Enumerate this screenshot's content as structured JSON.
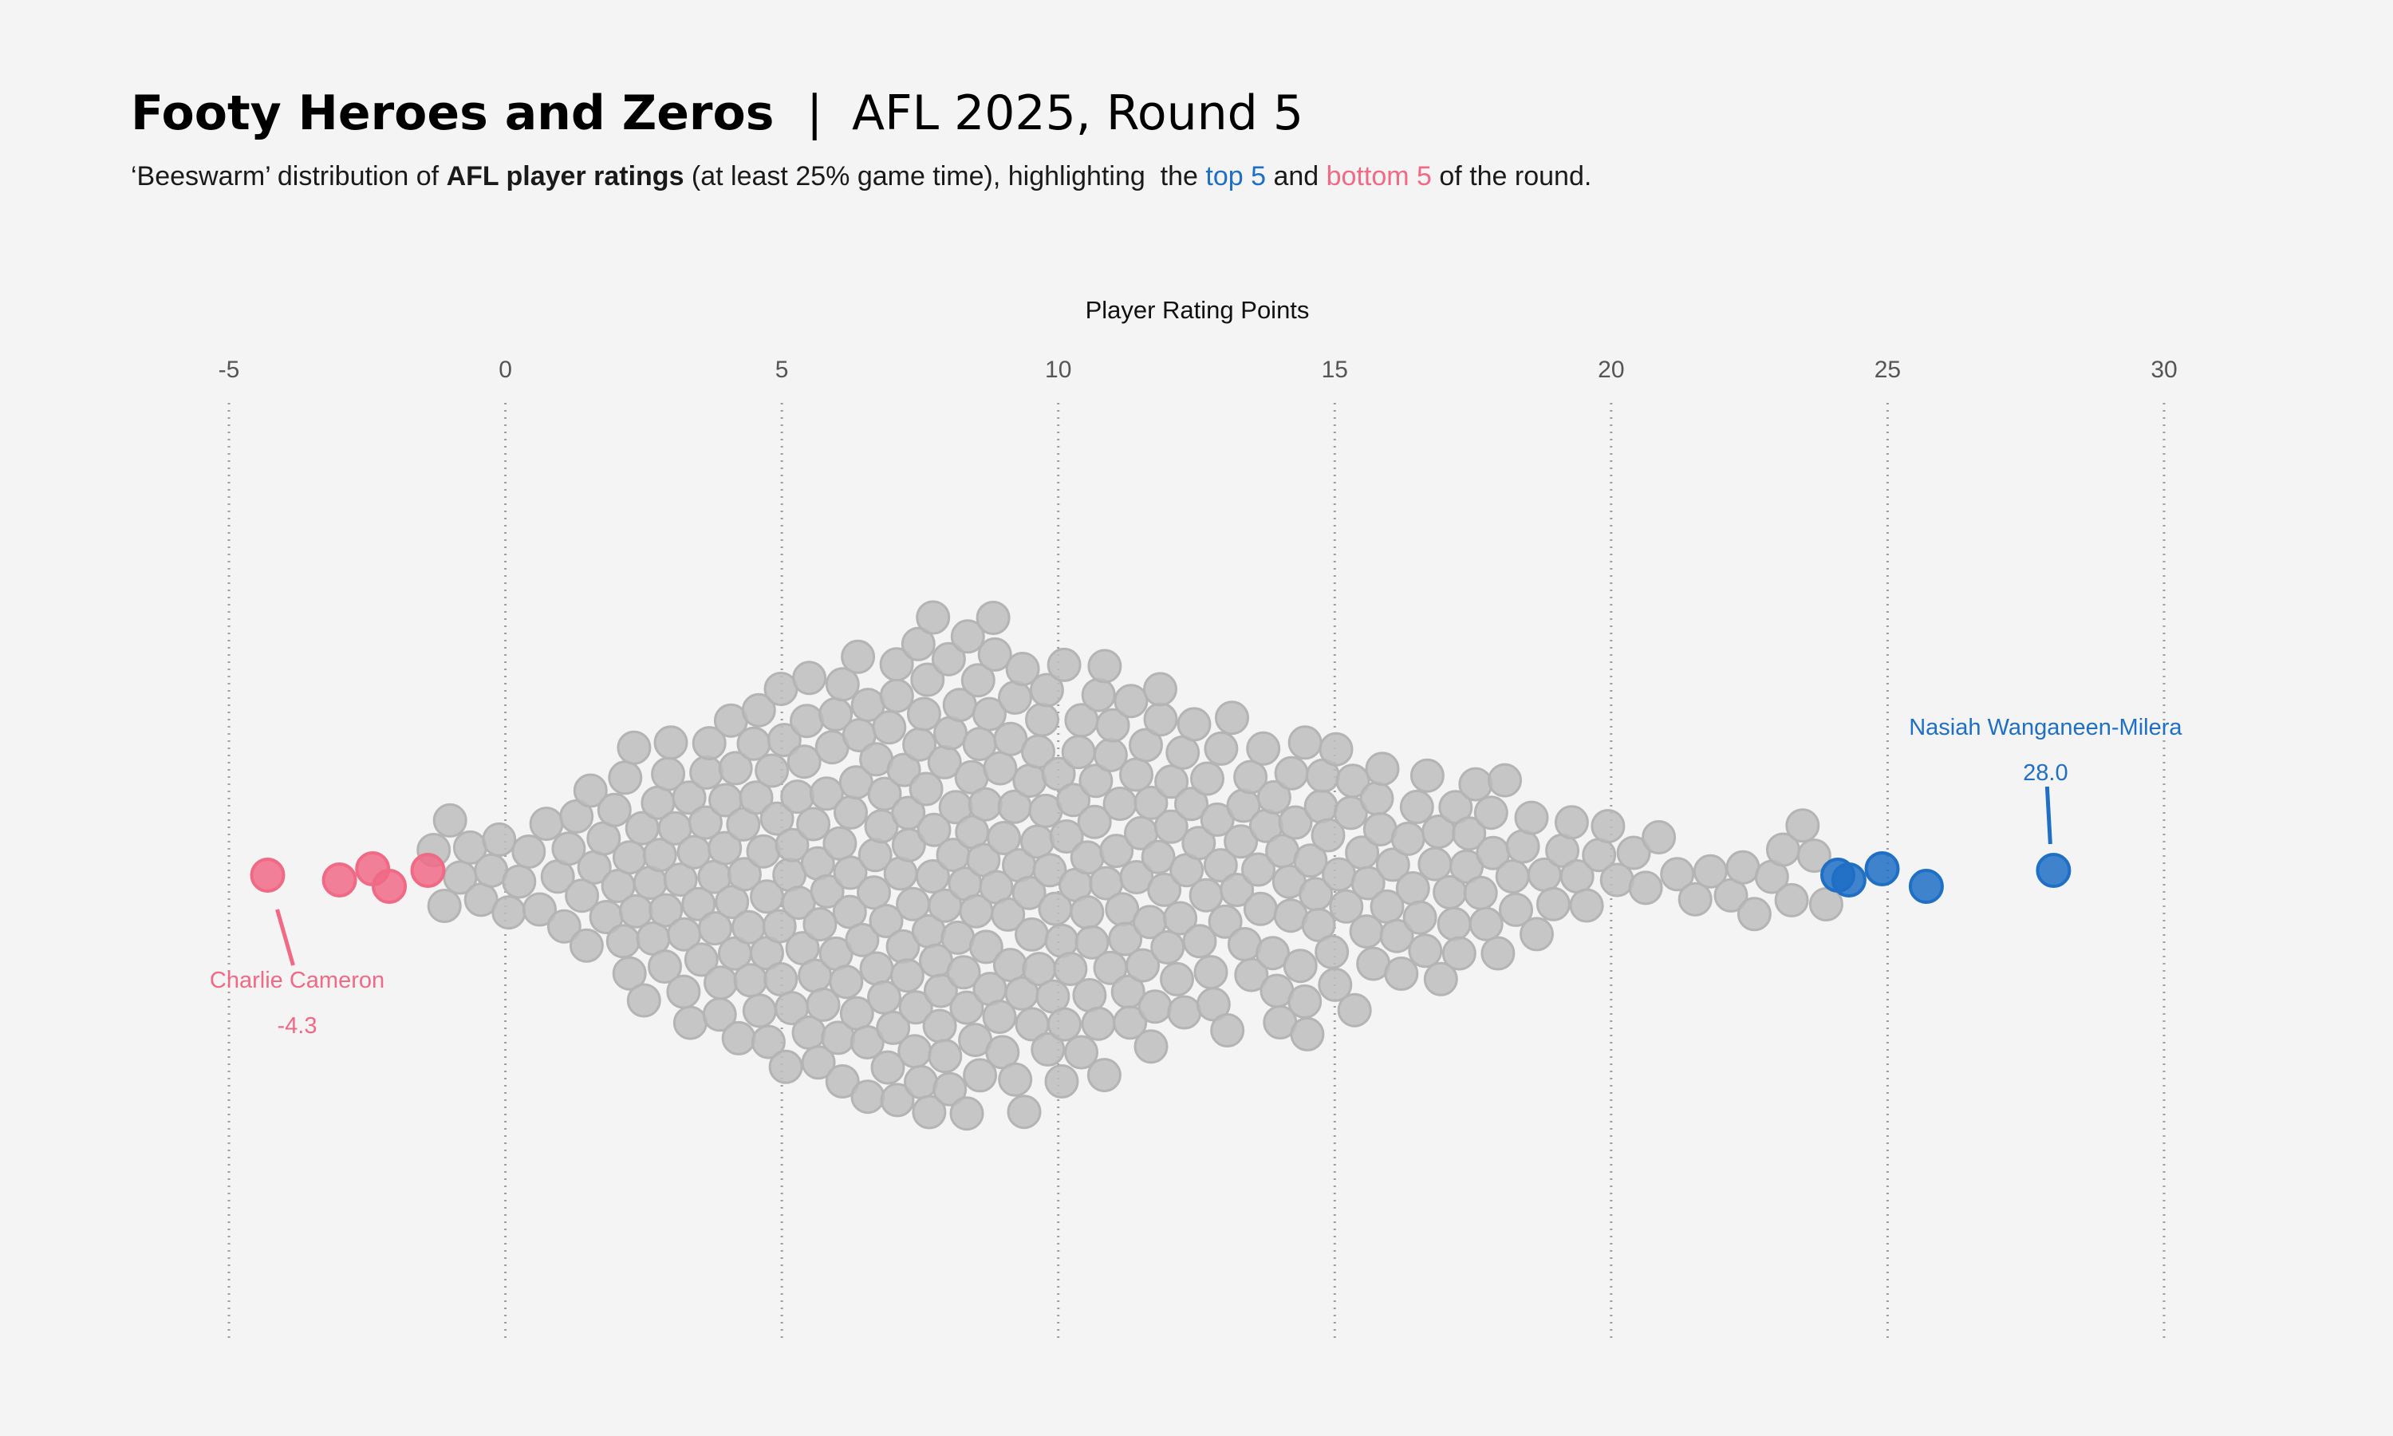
{
  "title": {
    "bold": "Footy Heroes and Zeros",
    "separator": "|",
    "rest": "AFL 2025, Round 5"
  },
  "subtitle": {
    "p1": "‘Beeswarm’ distribution of ",
    "p2": "AFL player ratings",
    "p3": " (at least 25% game time), highlighting  the ",
    "p4": "top 5",
    "p5": " and ",
    "p6": "bottom 5",
    "p7": " of the round."
  },
  "colors": {
    "background": "#f4f4f4",
    "neutral_point": "#bdbdbd",
    "top": "#1f6fc5",
    "bottom": "#f06a86",
    "gridline": "#9e9e9e"
  },
  "chart_data": {
    "type": "scatter",
    "subtype": "beeswarm",
    "xlabel": "Player Rating Points",
    "xlim": [
      -5,
      30
    ],
    "xticks": [
      -5,
      0,
      5,
      10,
      15,
      20,
      25,
      30
    ],
    "grid": true,
    "highlighted": {
      "bottom_5": [
        -4.3,
        -3.0,
        -2.4,
        -2.1,
        -1.4
      ],
      "top_5": [
        24.1,
        24.3,
        24.9,
        25.7,
        28.0
      ]
    },
    "annotations": [
      {
        "name": "Nasiah Wanganeen-Milera",
        "value": "28.0",
        "group": "top"
      },
      {
        "name": "Charlie Cameron",
        "value": "-4.3",
        "group": "bottom"
      }
    ],
    "other_players": [
      {
        "range": [
          -1.4,
          0.0
        ],
        "count": 8
      },
      {
        "range": [
          0.0,
          1.0
        ],
        "count": 6
      },
      {
        "range": [
          1.0,
          2.0
        ],
        "count": 10
      },
      {
        "range": [
          2.0,
          3.0
        ],
        "count": 16
      },
      {
        "range": [
          3.0,
          4.0
        ],
        "count": 18
      },
      {
        "range": [
          4.0,
          5.0
        ],
        "count": 22
      },
      {
        "range": [
          5.0,
          6.0
        ],
        "count": 24
      },
      {
        "range": [
          6.0,
          7.0
        ],
        "count": 26
      },
      {
        "range": [
          7.0,
          8.0
        ],
        "count": 30
      },
      {
        "range": [
          8.0,
          9.0
        ],
        "count": 30
      },
      {
        "range": [
          9.0,
          10.0
        ],
        "count": 26
      },
      {
        "range": [
          10.0,
          11.0
        ],
        "count": 24
      },
      {
        "range": [
          11.0,
          12.0
        ],
        "count": 22
      },
      {
        "range": [
          12.0,
          13.0
        ],
        "count": 18
      },
      {
        "range": [
          13.0,
          14.0
        ],
        "count": 16
      },
      {
        "range": [
          14.0,
          15.0
        ],
        "count": 18
      },
      {
        "range": [
          15.0,
          16.0
        ],
        "count": 14
      },
      {
        "range": [
          16.0,
          17.0
        ],
        "count": 12
      },
      {
        "range": [
          17.0,
          18.0
        ],
        "count": 12
      },
      {
        "range": [
          18.0,
          19.0
        ],
        "count": 8
      },
      {
        "range": [
          19.0,
          20.0
        ],
        "count": 6
      },
      {
        "range": [
          20.0,
          21.0
        ],
        "count": 4
      },
      {
        "range": [
          21.0,
          22.0
        ],
        "count": 3
      },
      {
        "range": [
          22.0,
          23.0
        ],
        "count": 4
      },
      {
        "range": [
          23.0,
          24.0
        ],
        "count": 5
      }
    ]
  }
}
